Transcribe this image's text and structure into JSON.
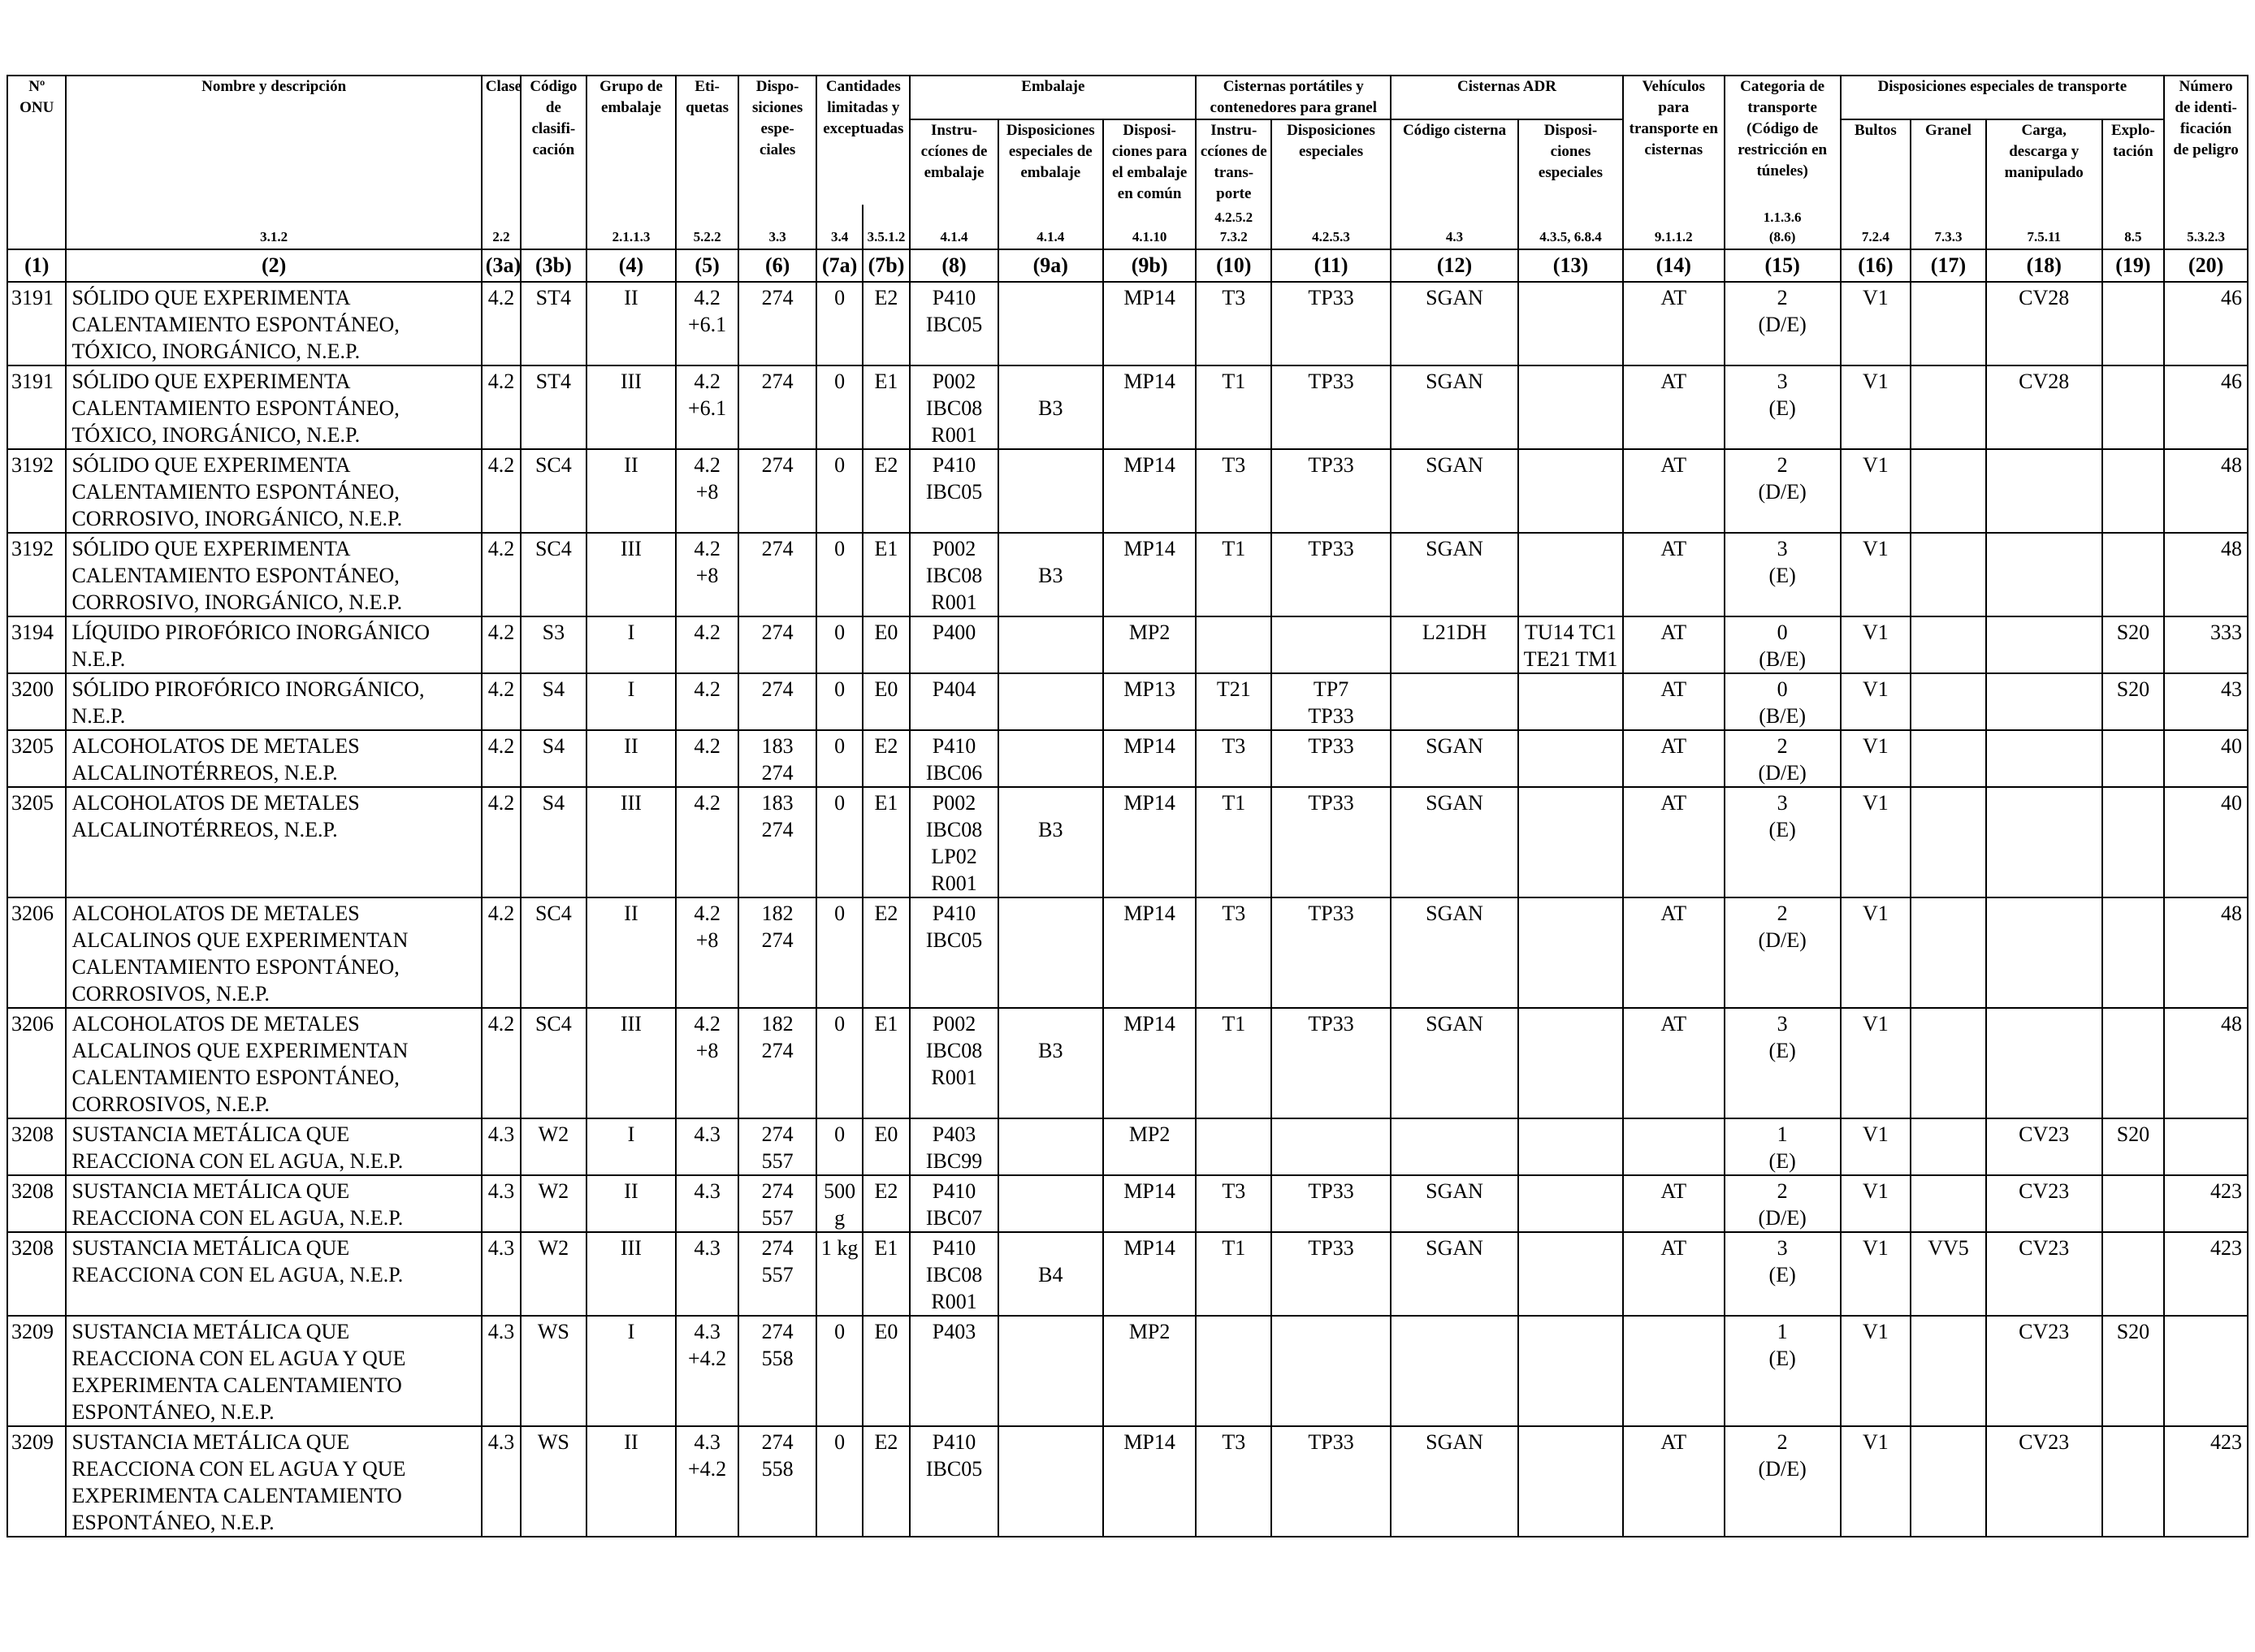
{
  "header": {
    "un_no": "Nº\nONU",
    "name_desc": "Nombre y descripción",
    "clase": "Clase",
    "cod_clasif": "Código\nde clasifi-\ncación",
    "grupo_emb": "Grupo de\nembalaje",
    "etiquetas": "Eti-\nquetas",
    "disposiciones": "Dispo-\nsiciones\nespe-\nciales",
    "cantidades": "Cantidades\nlimitadas y\nexceptuadas",
    "embalaje": "Embalaje",
    "emb_instr": "Instru-\nccíones de\nembalaje",
    "emb_disp": "Disposiciones\nespeciales de\nembalaje",
    "emb_comun": "Disposi-\nciones para\nel embalaje\nen común",
    "cisternas_port": "Cisternas portátiles y\ncontenedores para granel",
    "cp_instr": "Instru-\nccíones de\ntrans-\nporte",
    "cp_disp": "Disposiciones\nespeciales",
    "cisternas_adr": "Cisternas ADR",
    "adr_codigo": "Código cisterna",
    "adr_disp": "Disposi-\nciones\nespeciales",
    "vehiculos": "Vehículos\npara\ntransporte en\ncisternas",
    "categoria": "Categoria de\ntransporte\n(Código de\nrestricción en\ntúneles)",
    "disp_transp": "Disposiciones especiales de transporte",
    "bultos": "Bultos",
    "granel": "Granel",
    "carga": "Carga,\ndescarga y\nmanipulado",
    "explotacion": "Explo-\ntación",
    "numero_id": "Número\nde identi-\nficación\nde peligro"
  },
  "refs": [
    "",
    "3.1.2",
    "2.2",
    "",
    "2.1.1.3",
    "5.2.2",
    "3.3",
    "3.4",
    "3.5.1.2",
    "4.1.4",
    "4.1.4",
    "4.1.10",
    "4.2.5.2\n7.3.2",
    "4.2.5.3",
    "4.3",
    "4.3.5, 6.8.4",
    "9.1.1.2",
    "1.1.3.6\n(8.6)",
    "7.2.4",
    "7.3.3",
    "7.5.11",
    "8.5",
    "5.3.2.3"
  ],
  "colnums": [
    "(1)",
    "(2)",
    "(3a)",
    "(3b)",
    "(4)",
    "(5)",
    "(6)",
    "(7a)",
    "(7b)",
    "(8)",
    "(9a)",
    "(9b)",
    "(10)",
    "(11)",
    "(12)",
    "(13)",
    "(14)",
    "(15)",
    "(16)",
    "(17)",
    "(18)",
    "(19)",
    "(20)"
  ],
  "rows": [
    [
      "3191",
      "SÓLIDO QUE EXPERIMENTA CALENTAMIENTO ESPONTÁNEO, TÓXICO, INORGÁNICO, N.E.P.",
      "4.2",
      "ST4",
      "II",
      "4.2\n+6.1",
      "274",
      "0",
      "E2",
      "P410\nIBC05",
      "",
      "MP14",
      "T3",
      "TP33",
      "SGAN",
      "",
      "AT",
      "2\n(D/E)",
      "V1",
      "",
      "CV28",
      "",
      "46"
    ],
    [
      "3191",
      "SÓLIDO QUE EXPERIMENTA CALENTAMIENTO ESPONTÁNEO, TÓXICO, INORGÁNICO, N.E.P.",
      "4.2",
      "ST4",
      "III",
      "4.2\n+6.1",
      "274",
      "0",
      "E1",
      "P002\nIBC08\nR001",
      "\nB3",
      "MP14",
      "T1",
      "TP33",
      "SGAN",
      "",
      "AT",
      "3\n(E)",
      "V1",
      "",
      "CV28",
      "",
      "46"
    ],
    [
      "3192",
      "SÓLIDO QUE EXPERIMENTA CALENTAMIENTO ESPONTÁNEO, CORROSIVO, INORGÁNICO, N.E.P.",
      "4.2",
      "SC4",
      "II",
      "4.2\n+8",
      "274",
      "0",
      "E2",
      "P410\nIBC05",
      "",
      "MP14",
      "T3",
      "TP33",
      "SGAN",
      "",
      "AT",
      "2\n(D/E)",
      "V1",
      "",
      "",
      "",
      "48"
    ],
    [
      "3192",
      "SÓLIDO QUE EXPERIMENTA CALENTAMIENTO ESPONTÁNEO, CORROSIVO, INORGÁNICO, N.E.P.",
      "4.2",
      "SC4",
      "III",
      "4.2\n+8",
      "274",
      "0",
      "E1",
      "P002\nIBC08\nR001",
      "\nB3",
      "MP14",
      "T1",
      "TP33",
      "SGAN",
      "",
      "AT",
      "3\n(E)",
      "V1",
      "",
      "",
      "",
      "48"
    ],
    [
      "3194",
      "LÍQUIDO PIROFÓRICO INORGÁNICO N.E.P.",
      "4.2",
      "S3",
      "I",
      "4.2",
      "274",
      "0",
      "E0",
      "P400",
      "",
      "MP2",
      "",
      "",
      "L21DH",
      "TU14 TC1\nTE21 TM1",
      "AT",
      "0\n(B/E)",
      "V1",
      "",
      "",
      "S20",
      "333"
    ],
    [
      "3200",
      "SÓLIDO PIROFÓRICO INORGÁNICO, N.E.P.",
      "4.2",
      "S4",
      "I",
      "4.2",
      "274",
      "0",
      "E0",
      "P404",
      "",
      "MP13",
      "T21",
      "TP7\nTP33",
      "",
      "",
      "AT",
      "0\n(B/E)",
      "V1",
      "",
      "",
      "S20",
      "43"
    ],
    [
      "3205",
      "ALCOHOLATOS DE METALES ALCALINOTÉRREOS, N.E.P.",
      "4.2",
      "S4",
      "II",
      "4.2",
      "183\n274",
      "0",
      "E2",
      "P410\nIBC06",
      "",
      "MP14",
      "T3",
      "TP33",
      "SGAN",
      "",
      "AT",
      "2\n(D/E)",
      "V1",
      "",
      "",
      "",
      "40"
    ],
    [
      "3205",
      "ALCOHOLATOS DE METALES ALCALINOTÉRREOS, N.E.P.",
      "4.2",
      "S4",
      "III",
      "4.2",
      "183\n274",
      "0",
      "E1",
      "P002\nIBC08\nLP02\nR001",
      "\nB3",
      "MP14",
      "T1",
      "TP33",
      "SGAN",
      "",
      "AT",
      "3\n(E)",
      "V1",
      "",
      "",
      "",
      "40"
    ],
    [
      "3206",
      "ALCOHOLATOS DE METALES ALCALINOS QUE EXPERIMENTAN CALENTAMIENTO ESPONTÁNEO, CORROSIVOS, N.E.P.",
      "4.2",
      "SC4",
      "II",
      "4.2\n+8",
      "182\n274",
      "0",
      "E2",
      "P410\nIBC05",
      "",
      "MP14",
      "T3",
      "TP33",
      "SGAN",
      "",
      "AT",
      "2\n(D/E)",
      "V1",
      "",
      "",
      "",
      "48"
    ],
    [
      "3206",
      "ALCOHOLATOS DE METALES ALCALINOS QUE EXPERIMENTAN CALENTAMIENTO ESPONTÁNEO, CORROSIVOS, N.E.P.",
      "4.2",
      "SC4",
      "III",
      "4.2\n+8",
      "182\n274",
      "0",
      "E1",
      "P002\nIBC08\nR001",
      "\nB3",
      "MP14",
      "T1",
      "TP33",
      "SGAN",
      "",
      "AT",
      "3\n(E)",
      "V1",
      "",
      "",
      "",
      "48"
    ],
    [
      "3208",
      "SUSTANCIA METÁLICA QUE REACCIONA CON EL AGUA, N.E.P.",
      "4.3",
      "W2",
      "I",
      "4.3",
      "274\n557",
      "0",
      "E0",
      "P403\nIBC99",
      "",
      "MP2",
      "",
      "",
      "",
      "",
      "",
      "1\n(E)",
      "V1",
      "",
      "CV23",
      "S20",
      ""
    ],
    [
      "3208",
      "SUSTANCIA METÁLICA QUE REACCIONA CON EL AGUA, N.E.P.",
      "4.3",
      "W2",
      "II",
      "4.3",
      "274\n557",
      "500\ng",
      "E2",
      "P410\nIBC07",
      "",
      "MP14",
      "T3",
      "TP33",
      "SGAN",
      "",
      "AT",
      "2\n(D/E)",
      "V1",
      "",
      "CV23",
      "",
      "423"
    ],
    [
      "3208",
      "SUSTANCIA METÁLICA QUE REACCIONA CON EL AGUA, N.E.P.",
      "4.3",
      "W2",
      "III",
      "4.3",
      "274\n557",
      "1 kg",
      "E1",
      "P410\nIBC08\nR001",
      "\nB4",
      "MP14",
      "T1",
      "TP33",
      "SGAN",
      "",
      "AT",
      "3\n(E)",
      "V1",
      "VV5",
      "CV23",
      "",
      "423"
    ],
    [
      "3209",
      "SUSTANCIA METÁLICA QUE REACCIONA CON EL AGUA Y QUE EXPERIMENTA CALENTAMIENTO ESPONTÁNEO, N.E.P.",
      "4.3",
      "WS",
      "I",
      "4.3\n+4.2",
      "274\n558",
      "0",
      "E0",
      "P403",
      "",
      "MP2",
      "",
      "",
      "",
      "",
      "",
      "1\n(E)",
      "V1",
      "",
      "CV23",
      "S20",
      ""
    ],
    [
      "3209",
      "SUSTANCIA METÁLICA QUE REACCIONA CON EL AGUA Y QUE EXPERIMENTA CALENTAMIENTO ESPONTÁNEO, N.E.P.",
      "4.3",
      "WS",
      "II",
      "4.3\n+4.2",
      "274\n558",
      "0",
      "E2",
      "P410\nIBC05",
      "",
      "MP14",
      "T3",
      "TP33",
      "SGAN",
      "",
      "AT",
      "2\n(D/E)",
      "V1",
      "",
      "CV23",
      "",
      "423"
    ]
  ]
}
